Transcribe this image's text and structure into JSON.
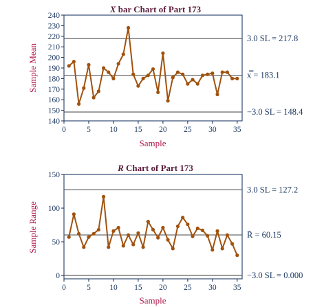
{
  "chart_data": [
    {
      "type": "line",
      "title_prefix": "X",
      "title": " bar Chart of Part 173",
      "xlabel": "Sample",
      "ylabel": "Sample Mean",
      "xlim": [
        0,
        36
      ],
      "ylim": [
        140,
        240
      ],
      "xticks": [
        0,
        5,
        10,
        15,
        20,
        25,
        30,
        35
      ],
      "yticks": [
        140,
        150,
        160,
        170,
        180,
        190,
        200,
        210,
        220,
        230,
        240
      ],
      "x": [
        1,
        2,
        3,
        4,
        5,
        6,
        7,
        8,
        9,
        10,
        11,
        12,
        13,
        14,
        15,
        16,
        17,
        18,
        19,
        20,
        21,
        22,
        23,
        24,
        25,
        26,
        27,
        28,
        29,
        30,
        31,
        32,
        33,
        34,
        35
      ],
      "values": [
        192,
        196,
        156,
        171,
        193,
        162,
        168,
        190,
        186,
        180,
        194,
        203,
        228,
        184,
        173,
        180,
        183,
        189,
        167,
        204,
        159,
        181,
        186,
        184,
        175,
        179,
        175,
        183,
        184,
        185,
        165,
        186,
        186,
        180,
        180
      ],
      "control_lines": [
        {
          "value": 217.8,
          "label": "3.0 SL = 217.8"
        },
        {
          "value": 183.1,
          "label": "x̿ = 183.1"
        },
        {
          "value": 148.4,
          "label": "−3.0 SL = 148.4"
        }
      ]
    },
    {
      "type": "line",
      "title_prefix": "R",
      "title": " Chart of Part 173",
      "xlabel": "Sample",
      "ylabel": "Sample Range",
      "xlim": [
        0,
        36
      ],
      "ylim": [
        -5,
        150
      ],
      "xticks": [
        0,
        5,
        10,
        15,
        20,
        25,
        30,
        35
      ],
      "yticks": [
        0,
        50,
        100,
        150
      ],
      "x": [
        1,
        2,
        3,
        4,
        5,
        6,
        7,
        8,
        9,
        10,
        11,
        12,
        13,
        14,
        15,
        16,
        17,
        18,
        19,
        20,
        21,
        22,
        23,
        24,
        25,
        26,
        27,
        28,
        29,
        30,
        31,
        32,
        33,
        34,
        35
      ],
      "values": [
        57,
        91,
        62,
        42,
        57,
        62,
        68,
        117,
        42,
        66,
        71,
        44,
        60,
        46,
        63,
        42,
        80,
        68,
        56,
        71,
        53,
        40,
        73,
        86,
        76,
        58,
        70,
        67,
        59,
        38,
        66,
        40,
        60,
        47,
        30
      ],
      "control_lines": [
        {
          "value": 127.2,
          "label": "3.0 SL = 127.2"
        },
        {
          "value": 60.15,
          "label": "R̄ = 60.15"
        },
        {
          "value": 0.0,
          "label": "−3.0 SL = 0.000"
        }
      ]
    }
  ]
}
